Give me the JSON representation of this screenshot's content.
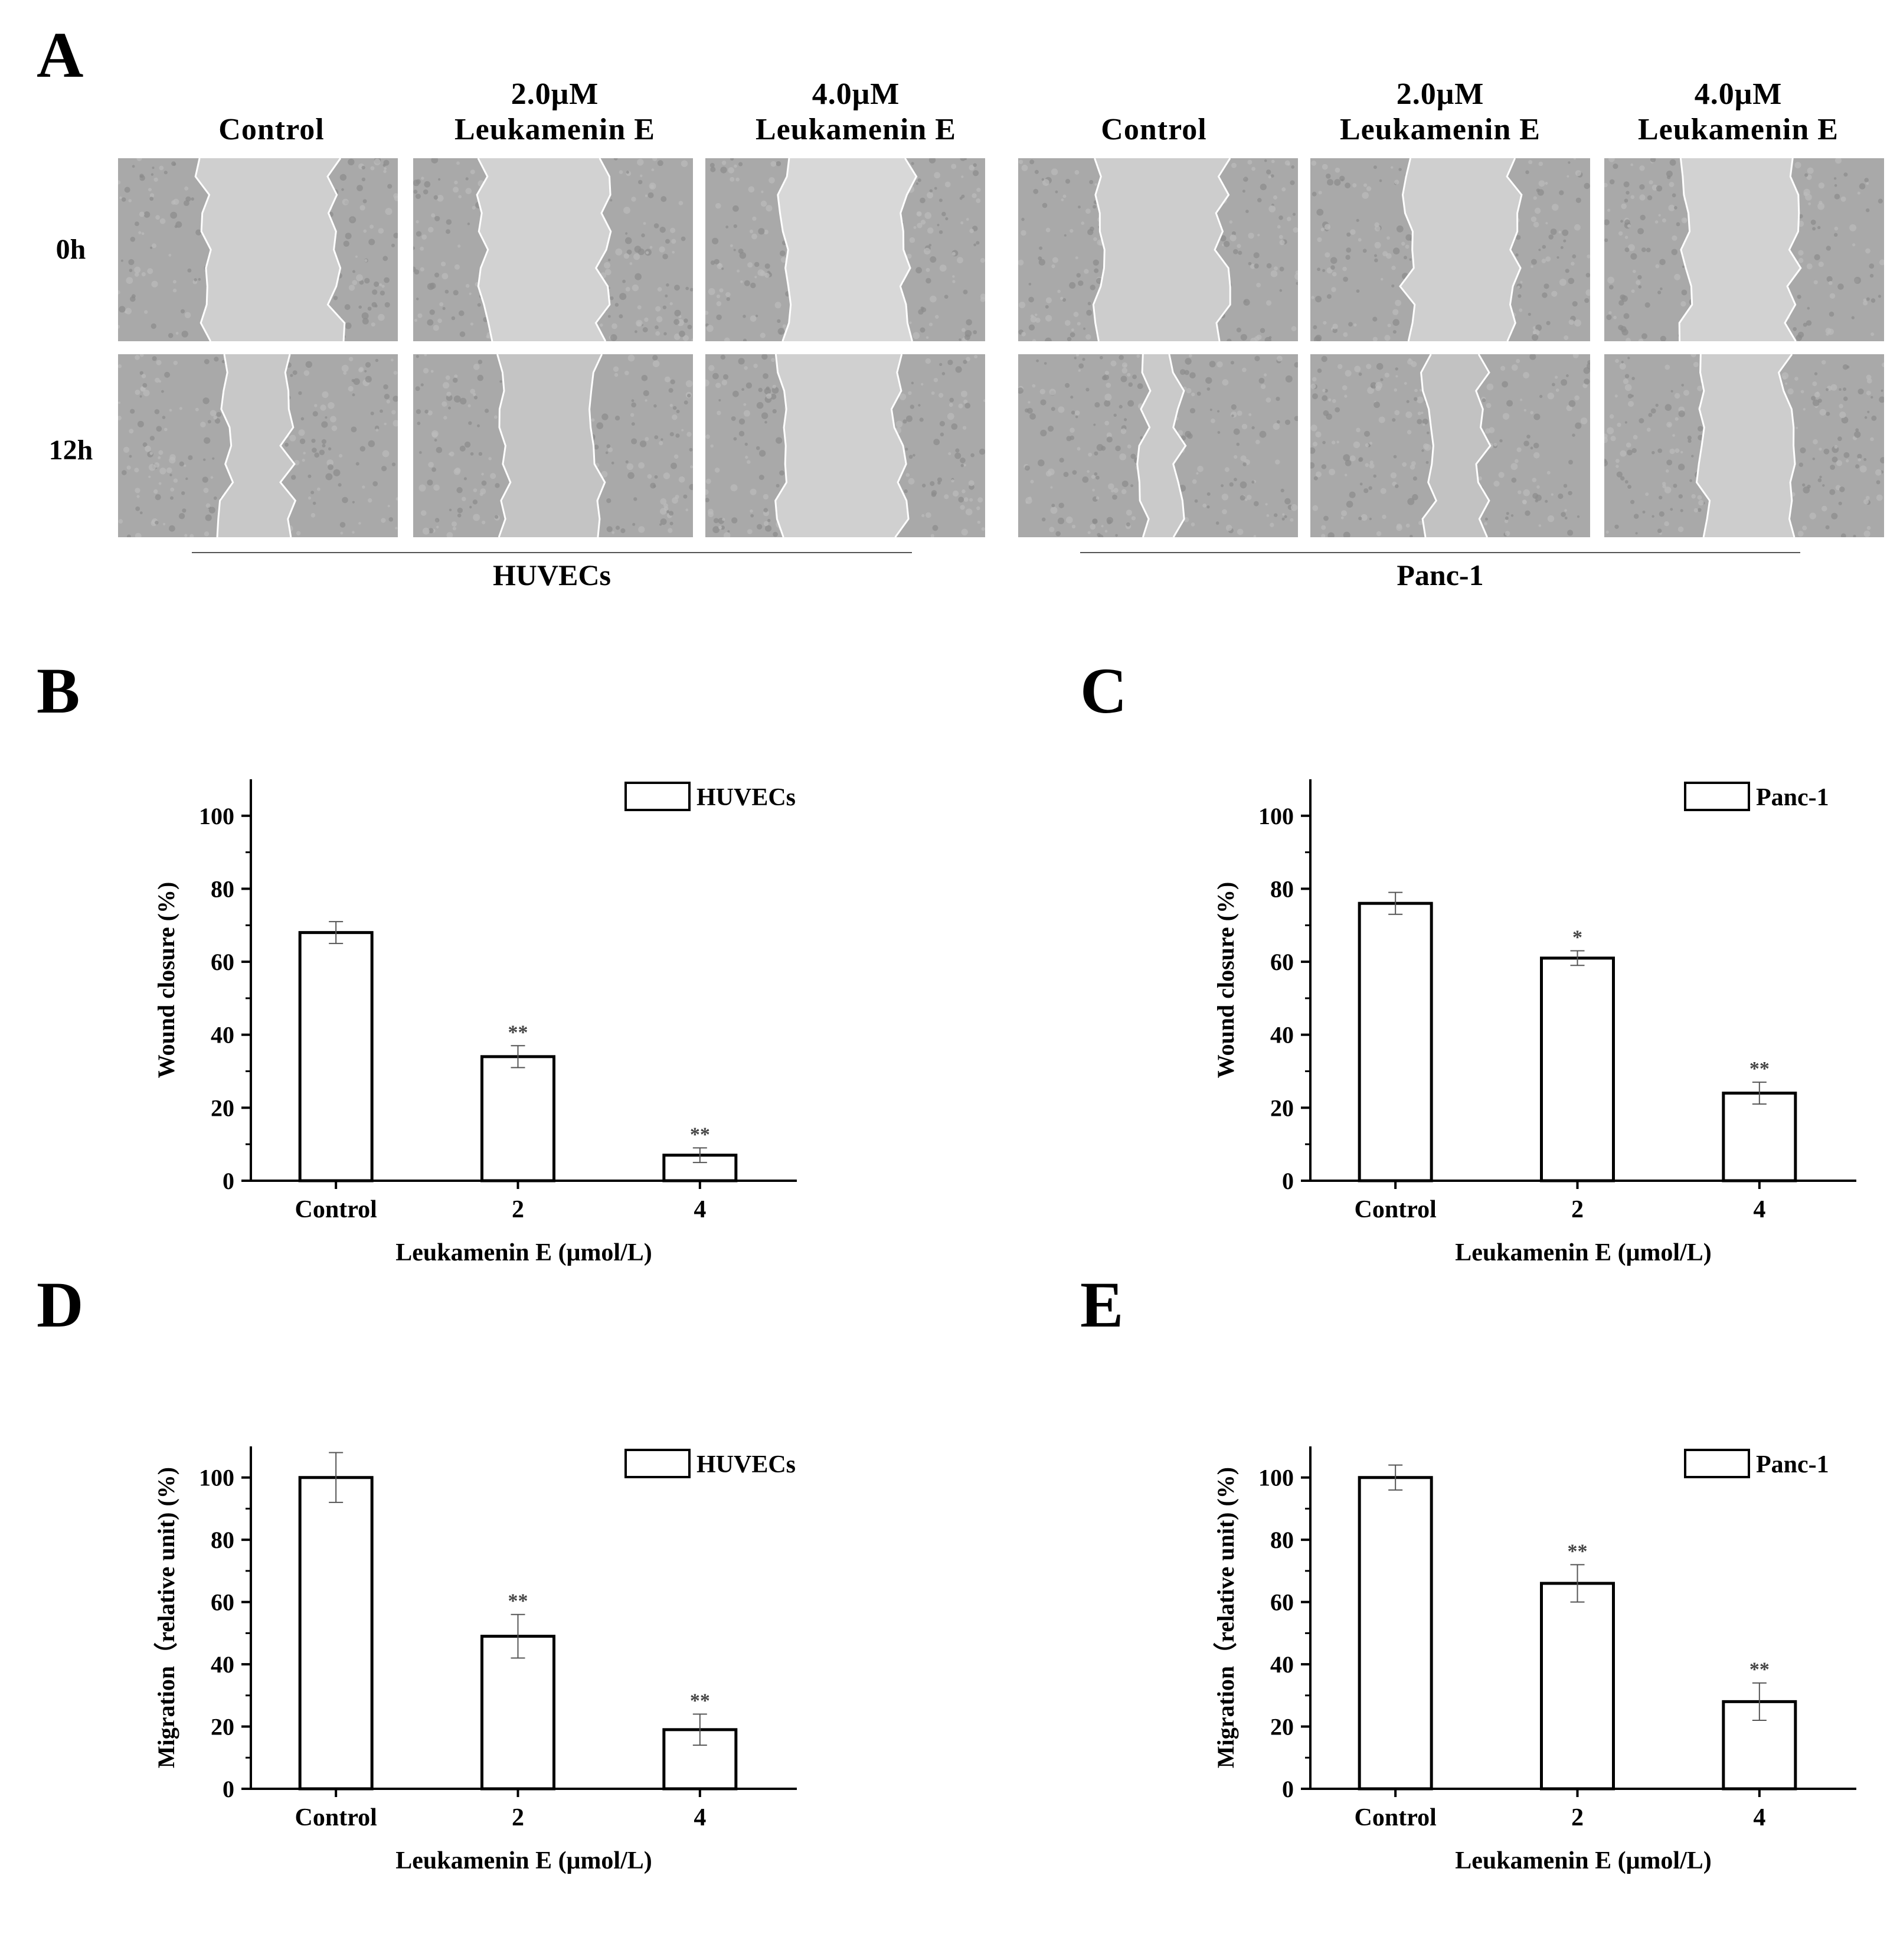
{
  "panel_a": {
    "letter": "A",
    "columns": [
      {
        "line1": "",
        "line2": "Control"
      },
      {
        "line1": "2.0μM",
        "line2": "Leukamenin E"
      },
      {
        "line1": "4.0μM",
        "line2": "Leukamenin E"
      },
      {
        "line1": "",
        "line2": "Control"
      },
      {
        "line1": "2.0μM",
        "line2": "Leukamenin E"
      },
      {
        "line1": "4.0μM",
        "line2": "Leukamenin E"
      }
    ],
    "rows": [
      "0h",
      "12h"
    ],
    "groups": [
      "HUVECs",
      "Panc-1"
    ]
  },
  "chart_data": [
    {
      "type": "bar",
      "panel": "B",
      "categories": [
        "Control",
        "2",
        "4"
      ],
      "series": [
        {
          "name": "HUVECs",
          "values": [
            68,
            34,
            7
          ],
          "errors": [
            3,
            3,
            2
          ]
        }
      ],
      "significance": [
        "",
        "**",
        "**"
      ],
      "xlabel": "Leukamenin E (μmol/L)",
      "ylabel": "Wound closure (%)",
      "ylim": [
        0,
        110
      ],
      "yticks": [
        0,
        20,
        40,
        60,
        80,
        100
      ],
      "legend": "top-right",
      "grid": false
    },
    {
      "type": "bar",
      "panel": "C",
      "categories": [
        "Control",
        "2",
        "4"
      ],
      "series": [
        {
          "name": "Panc-1",
          "values": [
            76,
            61,
            24
          ],
          "errors": [
            3,
            2,
            3
          ]
        }
      ],
      "significance": [
        "",
        "*",
        "**"
      ],
      "xlabel": "Leukamenin E (μmol/L)",
      "ylabel": "Wound closure (%)",
      "ylim": [
        0,
        110
      ],
      "yticks": [
        0,
        20,
        40,
        60,
        80,
        100
      ],
      "legend": "top-right",
      "grid": false
    },
    {
      "type": "bar",
      "panel": "D",
      "categories": [
        "Control",
        "2",
        "4"
      ],
      "series": [
        {
          "name": "HUVECs",
          "values": [
            100,
            49,
            19
          ],
          "errors": [
            8,
            7,
            5
          ]
        }
      ],
      "significance": [
        "",
        "**",
        "**"
      ],
      "xlabel": "Leukamenin E (μmol/L)",
      "ylabel": "Migration（relative unit) (%)",
      "ylim": [
        0,
        110
      ],
      "yticks": [
        0,
        20,
        40,
        60,
        80,
        100
      ],
      "legend": "top-right",
      "grid": false
    },
    {
      "type": "bar",
      "panel": "E",
      "categories": [
        "Control",
        "2",
        "4"
      ],
      "series": [
        {
          "name": "Panc-1",
          "values": [
            100,
            66,
            28
          ],
          "errors": [
            4,
            6,
            6
          ]
        }
      ],
      "significance": [
        "",
        "**",
        "**"
      ],
      "xlabel": "Leukamenin E (μmol/L)",
      "ylabel": "Migration（relative unit) (%)",
      "ylim": [
        0,
        110
      ],
      "yticks": [
        0,
        20,
        40,
        60,
        80,
        100
      ],
      "legend": "top-right",
      "grid": false
    }
  ]
}
